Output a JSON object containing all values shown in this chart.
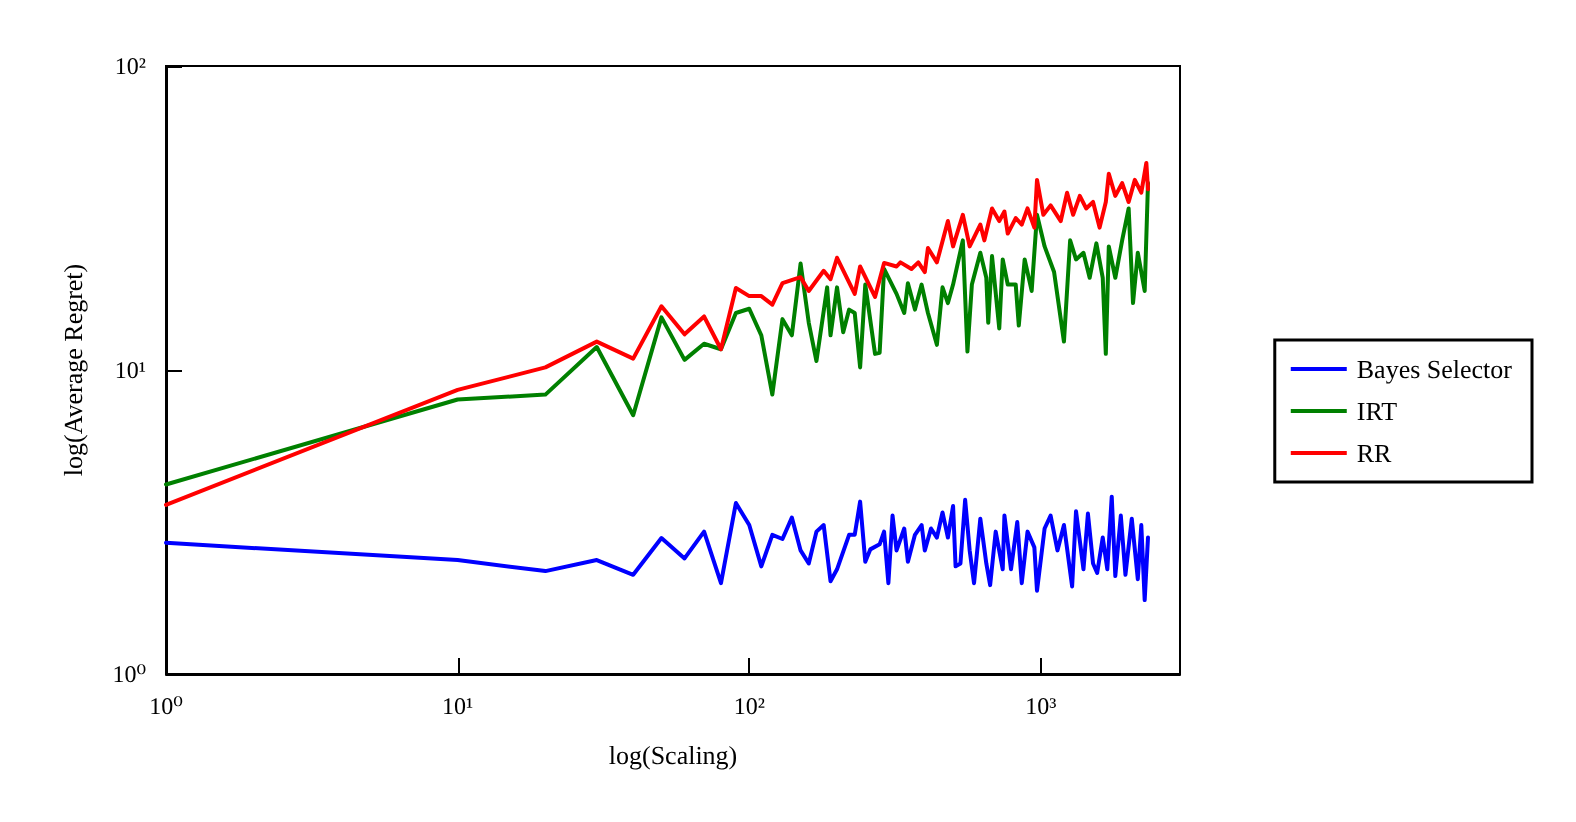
{
  "chart_data": {
    "type": "line",
    "xlabel": "log(Scaling)",
    "ylabel": "log(Average Regret)",
    "log": "xy",
    "grid": false,
    "legend": "right",
    "line_style": "solid",
    "marker": "none",
    "xlim": [
      1,
      3000
    ],
    "ylim": [
      1,
      100
    ],
    "xticks": [
      {
        "value": 1,
        "label": "10⁰"
      },
      {
        "value": 10,
        "label": "10¹"
      },
      {
        "value": 100,
        "label": "10²"
      },
      {
        "value": 1000,
        "label": "10³"
      }
    ],
    "yticks": [
      {
        "value": 1,
        "label": "10⁰"
      },
      {
        "value": 10,
        "label": "10¹"
      },
      {
        "value": 100,
        "label": "10²"
      }
    ],
    "series": [
      {
        "name": "Bayes Selector",
        "color": "#0000ff",
        "x": [
          1,
          10,
          20,
          30,
          40,
          50,
          60,
          70,
          80,
          90,
          100,
          110,
          120,
          130,
          140,
          150,
          160,
          170,
          180,
          190,
          200,
          220,
          230,
          240,
          250,
          260,
          280,
          290,
          300,
          310,
          320,
          340,
          350,
          370,
          390,
          400,
          420,
          440,
          460,
          480,
          500,
          510,
          530,
          550,
          570,
          590,
          620,
          650,
          670,
          700,
          740,
          750,
          790,
          830,
          860,
          900,
          950,
          970,
          1030,
          1080,
          1140,
          1200,
          1280,
          1320,
          1400,
          1450,
          1510,
          1560,
          1630,
          1690,
          1750,
          1800,
          1880,
          1950,
          2050,
          2150,
          2210,
          2270,
          2330
        ],
        "values": [
          2.7,
          2.37,
          2.18,
          2.37,
          2.12,
          2.8,
          2.4,
          2.94,
          1.99,
          3.65,
          3.09,
          2.26,
          2.87,
          2.78,
          3.27,
          2.55,
          2.31,
          2.94,
          3.09,
          2.02,
          2.21,
          2.87,
          2.87,
          3.69,
          2.34,
          2.57,
          2.67,
          2.94,
          1.99,
          3.32,
          2.55,
          3.01,
          2.34,
          2.87,
          3.09,
          2.55,
          3.01,
          2.81,
          3.4,
          2.81,
          3.57,
          2.26,
          2.31,
          3.74,
          2.55,
          1.99,
          3.24,
          2.31,
          1.96,
          2.94,
          2.21,
          3.32,
          2.21,
          3.16,
          1.99,
          2.94,
          2.61,
          1.88,
          3.01,
          3.32,
          2.55,
          3.09,
          1.94,
          3.43,
          2.21,
          3.37,
          2.31,
          2.15,
          2.81,
          2.21,
          3.83,
          2.1,
          3.32,
          2.12,
          3.24,
          2.05,
          3.09,
          1.75,
          2.81
        ]
      },
      {
        "name": "IRT",
        "color": "#008000",
        "x": [
          1,
          10,
          20,
          30,
          40,
          50,
          60,
          70,
          80,
          90,
          100,
          110,
          120,
          130,
          140,
          150,
          160,
          170,
          185,
          190,
          200,
          210,
          220,
          230,
          240,
          250,
          270,
          280,
          290,
          320,
          340,
          350,
          370,
          390,
          410,
          440,
          460,
          480,
          500,
          540,
          560,
          580,
          620,
          650,
          660,
          680,
          720,
          740,
          770,
          820,
          840,
          880,
          930,
          970,
          1030,
          1110,
          1200,
          1260,
          1320,
          1400,
          1470,
          1550,
          1630,
          1670,
          1710,
          1800,
          1900,
          2000,
          2070,
          2150,
          2270,
          2330
        ],
        "values": [
          4.2,
          8.0,
          8.3,
          11.9,
          7.1,
          14.9,
          10.8,
          12.2,
          11.7,
          15.4,
          15.9,
          13.0,
          8.3,
          14.7,
          13.0,
          22.4,
          14.3,
          10.7,
          18.7,
          13.0,
          18.7,
          13.3,
          15.8,
          15.4,
          10.2,
          19.1,
          11.3,
          11.4,
          21.5,
          17.8,
          15.4,
          19.3,
          15.8,
          19.1,
          15.4,
          12.1,
          18.7,
          16.6,
          19.1,
          26.7,
          11.5,
          19.1,
          24.3,
          20.1,
          14.3,
          23.7,
          13.7,
          23.1,
          19.1,
          19.1,
          14.0,
          23.1,
          18.2,
          32.4,
          25.5,
          21.0,
          12.4,
          26.7,
          23.1,
          24.3,
          20.1,
          26.1,
          20.1,
          11.3,
          25.5,
          20.1,
          26.7,
          34.0,
          16.6,
          24.3,
          18.2,
          41.2
        ]
      },
      {
        "name": "RR",
        "color": "#ff0000",
        "x": [
          1,
          10,
          20,
          30,
          40,
          50,
          60,
          70,
          80,
          90,
          100,
          110,
          120,
          130,
          150,
          160,
          180,
          190,
          200,
          230,
          240,
          270,
          290,
          320,
          330,
          360,
          380,
          400,
          410,
          440,
          480,
          500,
          540,
          570,
          620,
          640,
          680,
          720,
          750,
          770,
          820,
          860,
          900,
          950,
          970,
          1020,
          1080,
          1170,
          1230,
          1290,
          1360,
          1430,
          1510,
          1590,
          1670,
          1710,
          1800,
          1900,
          2000,
          2100,
          2210,
          2300,
          2330
        ],
        "values": [
          3.6,
          8.6,
          10.2,
          12.4,
          10.9,
          16.2,
          13.1,
          15.0,
          11.7,
          18.6,
          17.5,
          17.5,
          16.4,
          19.3,
          20.2,
          18.2,
          21.2,
          19.9,
          23.4,
          17.8,
          21.9,
          17.4,
          22.5,
          21.9,
          22.6,
          21.5,
          22.6,
          21.0,
          25.2,
          22.6,
          30.9,
          25.5,
          32.4,
          25.5,
          30.1,
          26.7,
          34.0,
          30.9,
          33.2,
          28.1,
          31.6,
          30.1,
          34.0,
          29.4,
          42.2,
          32.4,
          34.8,
          30.9,
          38.3,
          32.4,
          37.4,
          34.0,
          35.7,
          29.4,
          35.7,
          44.2,
          37.4,
          41.2,
          35.7,
          42.2,
          38.3,
          48.0,
          39.3
        ]
      }
    ]
  }
}
